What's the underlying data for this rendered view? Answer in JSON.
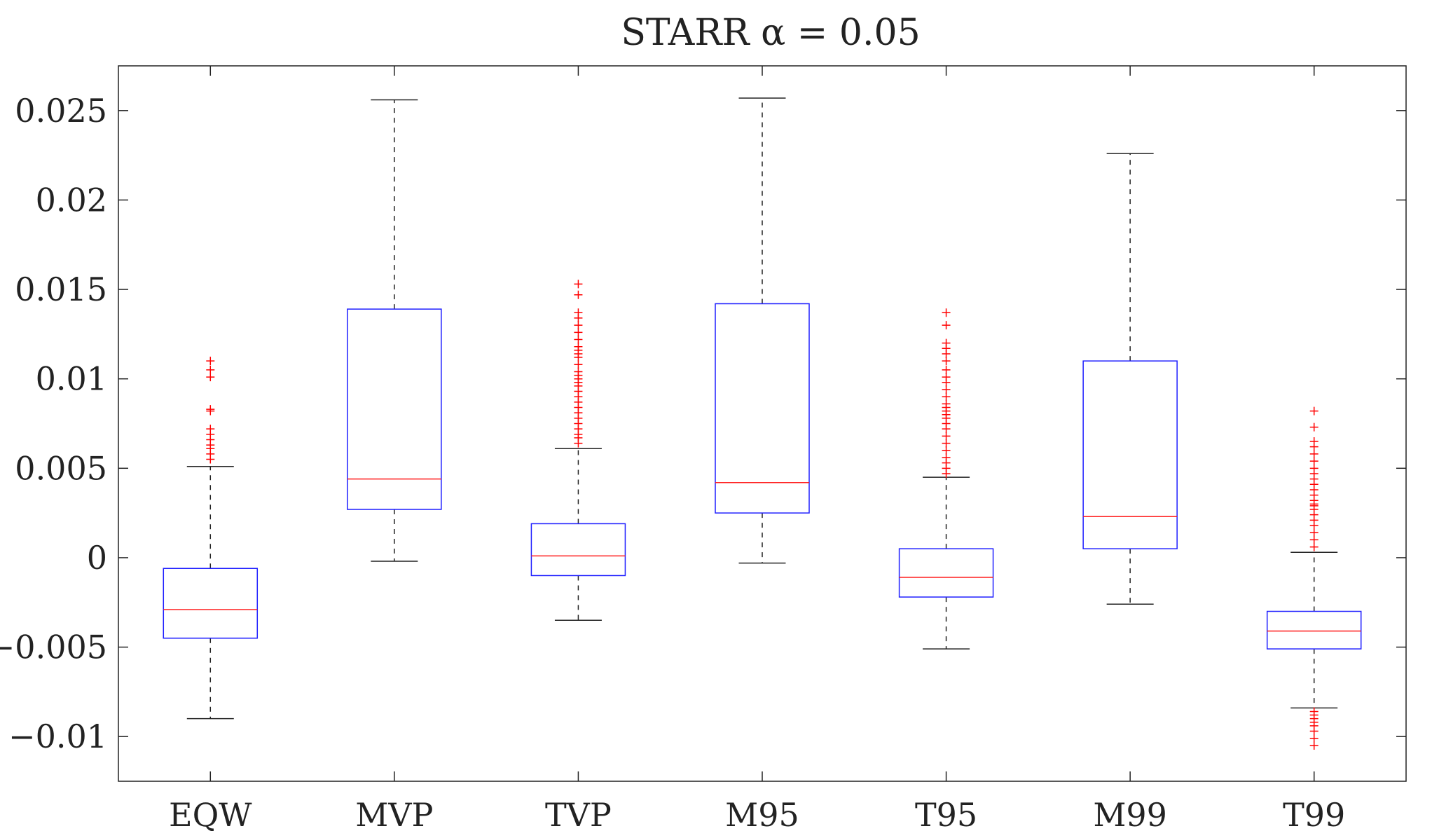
{
  "chart_data": {
    "type": "boxplot",
    "title": "STARR α = 0.05",
    "xlabel": "",
    "ylabel": "",
    "ylim": [
      -0.0125,
      0.0275
    ],
    "y_ticks": [
      -0.01,
      -0.005,
      0,
      0.005,
      0.01,
      0.015,
      0.02,
      0.025
    ],
    "y_tick_labels": [
      "−0.01",
      "−0.005",
      "0",
      "0.005",
      "0.01",
      "0.015",
      "0.02",
      "0.025"
    ],
    "categories": [
      "EQW",
      "MVP",
      "TVP",
      "M95",
      "T95",
      "M99",
      "T99"
    ],
    "boxes": [
      {
        "name": "EQW",
        "whisker_low": -0.009,
        "q1": -0.0045,
        "median": -0.0029,
        "q3": -0.0006,
        "whisker_high": 0.0051,
        "outliers": [
          0.0055,
          0.0058,
          0.0061,
          0.0063,
          0.0066,
          0.0069,
          0.0072,
          0.0082,
          0.0083,
          0.0101,
          0.0105,
          0.011
        ]
      },
      {
        "name": "MVP",
        "whisker_low": -0.0002,
        "q1": 0.0027,
        "median": 0.0044,
        "q3": 0.0139,
        "whisker_high": 0.0256,
        "outliers": []
      },
      {
        "name": "TVP",
        "whisker_low": -0.0035,
        "q1": -0.001,
        "median": 0.0001,
        "q3": 0.0019,
        "whisker_high": 0.0061,
        "outliers": [
          0.0064,
          0.0067,
          0.0069,
          0.0072,
          0.0075,
          0.0078,
          0.0081,
          0.0084,
          0.0087,
          0.009,
          0.0093,
          0.0096,
          0.0098,
          0.01,
          0.0102,
          0.0104,
          0.0108,
          0.0112,
          0.0114,
          0.0116,
          0.0118,
          0.0122,
          0.0126,
          0.013,
          0.0134,
          0.0137,
          0.0147,
          0.0153
        ]
      },
      {
        "name": "M95",
        "whisker_low": -0.0003,
        "q1": 0.0025,
        "median": 0.0042,
        "q3": 0.0142,
        "whisker_high": 0.0257,
        "outliers": []
      },
      {
        "name": "T95",
        "whisker_low": -0.0051,
        "q1": -0.0022,
        "median": -0.0011,
        "q3": 0.0005,
        "whisker_high": 0.0045,
        "outliers": [
          0.0047,
          0.005,
          0.0053,
          0.0056,
          0.006,
          0.0064,
          0.0068,
          0.0072,
          0.0075,
          0.0078,
          0.008,
          0.0082,
          0.0084,
          0.0086,
          0.009,
          0.0094,
          0.0098,
          0.0101,
          0.0105,
          0.011,
          0.0114,
          0.0117,
          0.012,
          0.013,
          0.0137
        ]
      },
      {
        "name": "M99",
        "whisker_low": -0.0026,
        "q1": 0.0005,
        "median": 0.0023,
        "q3": 0.011,
        "whisker_high": 0.0226,
        "outliers": []
      },
      {
        "name": "T99",
        "whisker_low": -0.0084,
        "q1": -0.0051,
        "median": -0.0041,
        "q3": -0.003,
        "whisker_high": 0.0003,
        "outliers": [
          0.0006,
          0.001,
          0.0014,
          0.0018,
          0.0021,
          0.0024,
          0.0027,
          0.0029,
          0.003,
          0.0032,
          0.0035,
          0.0038,
          0.0041,
          0.0044,
          0.0047,
          0.005,
          0.0054,
          0.0058,
          0.0062,
          0.0065,
          0.0073,
          0.0082,
          -0.0086,
          -0.0088,
          -0.009,
          -0.0092,
          -0.0094,
          -0.0097,
          -0.0101,
          -0.0105
        ]
      }
    ],
    "colors": {
      "box": "#1f1fff",
      "median": "#ff1f1f",
      "whisker": "#222222",
      "outlier": "#ff0000",
      "axis": "#222222"
    }
  }
}
